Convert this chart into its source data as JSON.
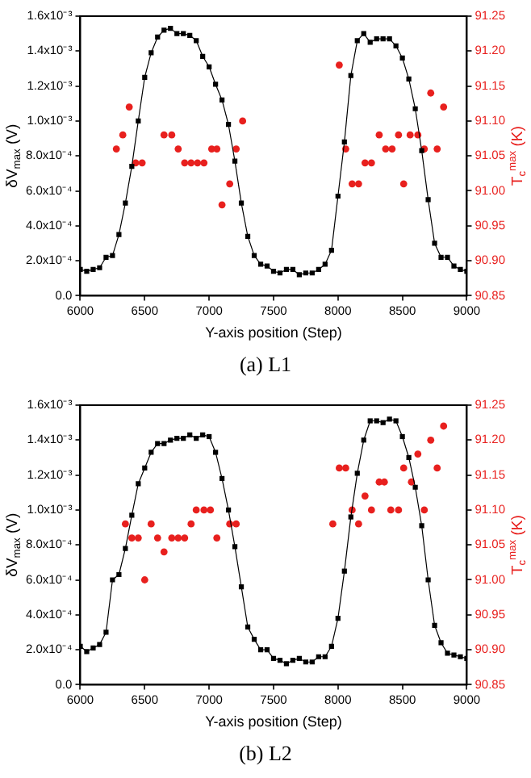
{
  "chart_data": [
    {
      "type": "line",
      "xlabel": "Y-axis position (Step)",
      "ylabel": "δV$_{max}$ (V)",
      "y2label": "T$_{c}$$^{max}$ (K)",
      "annotations": [
        "(a) L1"
      ],
      "xlim": [
        6000,
        9000
      ],
      "xticks": [
        6000,
        6500,
        7000,
        7500,
        8000,
        8500,
        9000
      ],
      "ylim": [
        0,
        0.0016
      ],
      "yticks": [
        {
          "value": 0,
          "label": "0.0"
        },
        {
          "value": 0.0002,
          "label": "2.0x10⁻⁴"
        },
        {
          "value": 0.0004,
          "label": "4.0x10⁻⁴"
        },
        {
          "value": 0.0006,
          "label": "6.0x10⁻⁴"
        },
        {
          "value": 0.0008,
          "label": "8.0x10⁻⁴"
        },
        {
          "value": 0.001,
          "label": "1.0x10⁻³"
        },
        {
          "value": 0.0012,
          "label": "1.2x10⁻³"
        },
        {
          "value": 0.0014,
          "label": "1.4x10⁻³"
        },
        {
          "value": 0.0016,
          "label": "1.6x10⁻³"
        }
      ],
      "y2lim": [
        90.85,
        91.25
      ],
      "y2ticks": [
        91.25,
        {
          "value": 91.2,
          "label": "91.20"
        },
        91.15,
        {
          "value": 91.1,
          "label": "91.10"
        },
        91.05,
        {
          "value": 91.0,
          "label": "91.00"
        },
        90.95,
        {
          "value": 90.9,
          "label": "90.90"
        },
        90.85
      ],
      "grid": false,
      "legend": false,
      "series": [
        {
          "color": "#000000",
          "marker": "square",
          "x": [
            6000,
            6050,
            6100,
            6150,
            6200,
            6250,
            6300,
            6350,
            6400,
            6450,
            6500,
            6550,
            6600,
            6650,
            6700,
            6750,
            6800,
            6850,
            6900,
            6950,
            7000,
            7050,
            7100,
            7150,
            7200,
            7250,
            7300,
            7350,
            7400,
            7450,
            7500,
            7550,
            7600,
            7650,
            7700,
            7750,
            7800,
            7850,
            7900,
            7950,
            8000,
            8050,
            8100,
            8150,
            8200,
            8250,
            8300,
            8350,
            8400,
            8450,
            8500,
            8550,
            8600,
            8650,
            8700,
            8750,
            8800,
            8850,
            8900,
            8950,
            9000
          ],
          "values": [
            0.00015,
            0.00014,
            0.00015,
            0.00016,
            0.00022,
            0.00023,
            0.00035,
            0.00053,
            0.00074,
            0.001,
            0.00125,
            0.00139,
            0.00148,
            0.00152,
            0.00153,
            0.0015,
            0.0015,
            0.00149,
            0.00146,
            0.00137,
            0.00131,
            0.00121,
            0.00112,
            0.00098,
            0.00077,
            0.00053,
            0.00034,
            0.00023,
            0.00018,
            0.00017,
            0.00014,
            0.00013,
            0.00015,
            0.00015,
            0.00012,
            0.00013,
            0.00013,
            0.00015,
            0.00018,
            0.00026,
            0.00057,
            0.00088,
            0.00126,
            0.00146,
            0.0015,
            0.00145,
            0.00147,
            0.00147,
            0.00147,
            0.00143,
            0.00136,
            0.00124,
            0.00107,
            0.00083,
            0.00055,
            0.0003,
            0.00022,
            0.00022,
            0.00017,
            0.00015,
            0.00014
          ]
        },
        {
          "type": "scatter",
          "color": "#e8201e",
          "marker": "circle",
          "axis": "y2",
          "x": [
            6280,
            6330,
            6380,
            6430,
            6480,
            6650,
            6710,
            6760,
            6810,
            6860,
            6910,
            6960,
            7020,
            7060,
            7100,
            7160,
            7210,
            7260,
            8010,
            8060,
            8110,
            8160,
            8210,
            8260,
            8320,
            8370,
            8420,
            8470,
            8510,
            8560,
            8620,
            8670,
            8720,
            8770,
            8820
          ],
          "values": [
            91.06,
            91.08,
            91.12,
            91.04,
            91.04,
            91.08,
            91.08,
            91.06,
            91.04,
            91.04,
            91.04,
            91.04,
            91.06,
            91.06,
            90.98,
            91.01,
            91.06,
            91.1,
            91.18,
            91.06,
            91.01,
            91.01,
            91.04,
            91.04,
            91.08,
            91.06,
            91.06,
            91.08,
            91.01,
            91.08,
            91.08,
            91.06,
            91.14,
            91.06,
            91.12
          ]
        }
      ]
    },
    {
      "type": "line",
      "xlabel": "Y-axis position (Step)",
      "ylabel": "δV$_{max}$ (V)",
      "y2label": "T$_{c}$$^{max}$ (K)",
      "annotations": [
        "(b) L2"
      ],
      "xlim": [
        6000,
        9000
      ],
      "xticks": [
        6000,
        6500,
        7000,
        7500,
        8000,
        8500,
        9000
      ],
      "ylim": [
        0,
        0.0016
      ],
      "yticks": [
        {
          "value": 0,
          "label": "0.0"
        },
        {
          "value": 0.0002,
          "label": "2.0x10⁻⁴"
        },
        {
          "value": 0.0004,
          "label": "4.0x10⁻⁴"
        },
        {
          "value": 0.0006,
          "label": "6.0x10⁻⁴"
        },
        {
          "value": 0.0008,
          "label": "8.0x10⁻⁴"
        },
        {
          "value": 0.001,
          "label": "1.0x10⁻³"
        },
        {
          "value": 0.0012,
          "label": "1.2x10⁻³"
        },
        {
          "value": 0.0014,
          "label": "1.4x10⁻³"
        },
        {
          "value": 0.0016,
          "label": "1.6x10⁻³"
        }
      ],
      "y2lim": [
        90.85,
        91.25
      ],
      "y2ticks": [
        91.25,
        {
          "value": 91.2,
          "label": "91.20"
        },
        91.15,
        {
          "value": 91.1,
          "label": "91.10"
        },
        91.05,
        {
          "value": 91.0,
          "label": "91.00"
        },
        90.95,
        {
          "value": 90.9,
          "label": "90.90"
        },
        90.85
      ],
      "grid": false,
      "legend": false,
      "series": [
        {
          "color": "#000000",
          "marker": "square",
          "x": [
            6000,
            6050,
            6100,
            6150,
            6200,
            6250,
            6300,
            6350,
            6400,
            6450,
            6500,
            6550,
            6600,
            6650,
            6700,
            6750,
            6800,
            6850,
            6900,
            6950,
            7000,
            7050,
            7100,
            7150,
            7200,
            7250,
            7300,
            7350,
            7400,
            7450,
            7500,
            7550,
            7600,
            7650,
            7700,
            7750,
            7800,
            7850,
            7900,
            7950,
            8000,
            8050,
            8100,
            8150,
            8200,
            8250,
            8300,
            8350,
            8400,
            8450,
            8500,
            8550,
            8600,
            8650,
            8700,
            8750,
            8800,
            8850,
            8900,
            8950,
            9000
          ],
          "values": [
            0.00022,
            0.00019,
            0.00021,
            0.00023,
            0.0003,
            0.0006,
            0.00063,
            0.00078,
            0.00097,
            0.00115,
            0.00124,
            0.00133,
            0.00138,
            0.00138,
            0.0014,
            0.00141,
            0.00141,
            0.00143,
            0.00141,
            0.00143,
            0.00142,
            0.00133,
            0.00118,
            0.001,
            0.00079,
            0.00056,
            0.00033,
            0.00026,
            0.0002,
            0.0002,
            0.00015,
            0.00014,
            0.00012,
            0.00014,
            0.00015,
            0.00013,
            0.00013,
            0.00016,
            0.00016,
            0.00022,
            0.00038,
            0.00065,
            0.00096,
            0.00121,
            0.0014,
            0.00151,
            0.00151,
            0.0015,
            0.00152,
            0.00151,
            0.00142,
            0.0013,
            0.00113,
            0.00091,
            0.0006,
            0.00034,
            0.00024,
            0.00018,
            0.00017,
            0.00016,
            0.00015
          ]
        },
        {
          "type": "scatter",
          "color": "#e8201e",
          "marker": "circle",
          "axis": "y2",
          "x": [
            6350,
            6400,
            6450,
            6500,
            6550,
            6600,
            6650,
            6710,
            6760,
            6810,
            6860,
            6900,
            6960,
            7010,
            7060,
            7160,
            7210,
            7960,
            8010,
            8060,
            8110,
            8160,
            8210,
            8260,
            8320,
            8360,
            8410,
            8470,
            8510,
            8570,
            8620,
            8670,
            8720,
            8770,
            8820
          ],
          "values": [
            91.08,
            91.06,
            91.06,
            91.0,
            91.08,
            91.06,
            91.04,
            91.06,
            91.06,
            91.06,
            91.08,
            91.1,
            91.1,
            91.1,
            91.06,
            91.08,
            91.08,
            91.08,
            91.16,
            91.16,
            91.1,
            91.08,
            91.12,
            91.1,
            91.14,
            91.14,
            91.1,
            91.1,
            91.16,
            91.14,
            91.18,
            91.1,
            91.2,
            91.16,
            91.22
          ]
        }
      ]
    }
  ]
}
